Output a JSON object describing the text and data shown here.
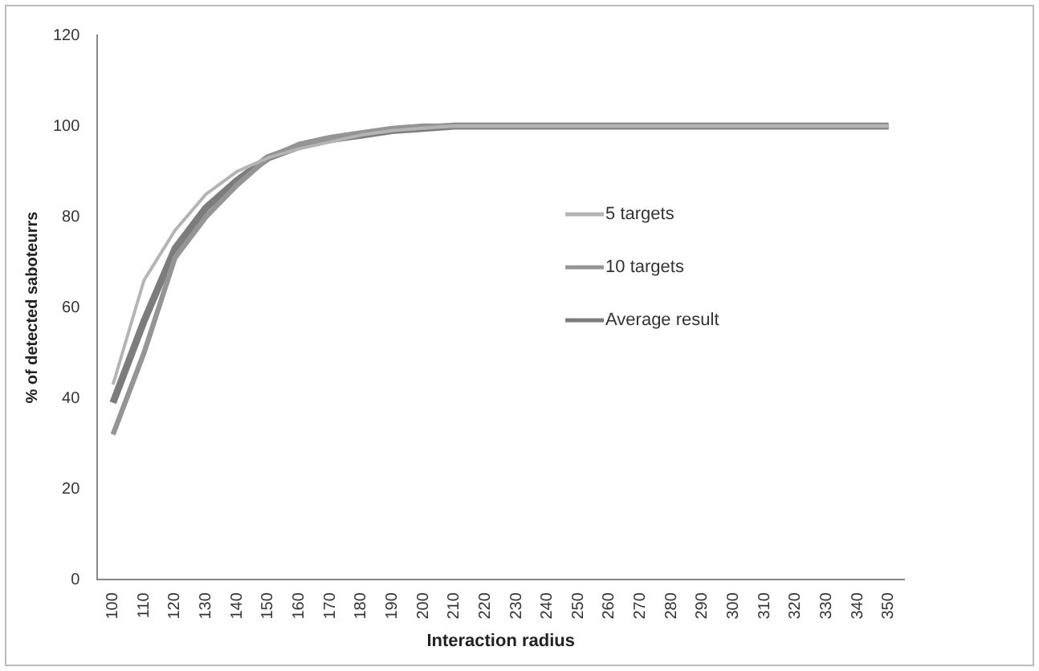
{
  "chart_data": {
    "type": "line",
    "xlabel": "Interaction radius",
    "ylabel": "% of detected saboteurrs",
    "categories": [
      "100",
      "110",
      "120",
      "130",
      "140",
      "150",
      "160",
      "170",
      "180",
      "190",
      "200",
      "210",
      "220",
      "230",
      "240",
      "250",
      "260",
      "270",
      "280",
      "290",
      "300",
      "310",
      "320",
      "330",
      "340",
      "350"
    ],
    "ylim": [
      0,
      120
    ],
    "yticks": [
      0,
      20,
      40,
      60,
      80,
      100,
      120
    ],
    "grid": false,
    "legend": "right",
    "marker": "none",
    "line_style": "solid",
    "series": [
      {
        "name": "5 targets",
        "color": "#b4b4b4",
        "values": [
          43,
          66,
          77,
          85,
          90,
          93,
          95,
          96.5,
          98,
          99,
          99.5,
          100,
          100,
          100,
          100,
          100,
          100,
          100,
          100,
          100,
          100,
          100,
          100,
          100,
          100,
          100
        ]
      },
      {
        "name": "10 targets",
        "color": "#959595",
        "values": [
          32,
          50,
          71,
          80,
          87,
          93,
          96,
          97.5,
          98.5,
          99.5,
          100,
          100,
          100,
          100,
          100,
          100,
          100,
          100,
          100,
          100,
          100,
          100,
          100,
          100,
          100,
          100
        ]
      },
      {
        "name": "Average result",
        "color": "#7c7c7c",
        "values": [
          39,
          57,
          73,
          82,
          88,
          93,
          95.5,
          97,
          98,
          99,
          99.5,
          100,
          100,
          100,
          100,
          100,
          100,
          100,
          100,
          100,
          100,
          100,
          100,
          100,
          100,
          100
        ]
      }
    ]
  }
}
